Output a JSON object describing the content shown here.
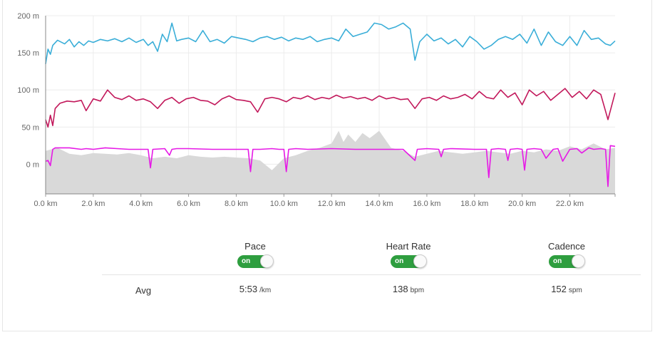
{
  "chart_data": {
    "type": "line",
    "x_ticks": [
      "0.0 km",
      "2.0 km",
      "4.0 km",
      "6.0 km",
      "8.0 km",
      "10.0 km",
      "12.0 km",
      "14.0 km",
      "16.0 km",
      "18.0 km",
      "20.0 km",
      "22.0 km"
    ],
    "y_ticks": [
      "200 m",
      "150 m",
      "100 m",
      "50 m",
      "0 m"
    ],
    "y_range": [
      -40,
      200
    ],
    "x_range": [
      0,
      23.9
    ],
    "grid": true,
    "series": [
      {
        "color": "#3aaed8",
        "x": [
          0,
          0.1,
          0.2,
          0.3,
          0.5,
          0.8,
          1.0,
          1.2,
          1.4,
          1.6,
          1.8,
          2.0,
          2.3,
          2.6,
          2.9,
          3.2,
          3.5,
          3.8,
          4.1,
          4.3,
          4.5,
          4.7,
          4.9,
          5.1,
          5.3,
          5.5,
          5.7,
          6.0,
          6.3,
          6.6,
          6.9,
          7.2,
          7.5,
          7.8,
          8.1,
          8.4,
          8.7,
          9.0,
          9.3,
          9.6,
          9.9,
          10.2,
          10.5,
          10.8,
          11.1,
          11.4,
          11.7,
          12.0,
          12.3,
          12.6,
          12.9,
          13.2,
          13.5,
          13.8,
          14.1,
          14.4,
          14.7,
          15.0,
          15.3,
          15.5,
          15.7,
          16.0,
          16.3,
          16.6,
          16.9,
          17.2,
          17.5,
          17.8,
          18.1,
          18.4,
          18.7,
          19.0,
          19.3,
          19.6,
          19.9,
          20.2,
          20.5,
          20.8,
          21.1,
          21.4,
          21.7,
          22.0,
          22.3,
          22.6,
          22.9,
          23.2,
          23.5,
          23.7,
          23.9
        ],
        "y": [
          135,
          155,
          148,
          160,
          167,
          162,
          168,
          158,
          165,
          160,
          166,
          164,
          168,
          166,
          169,
          165,
          170,
          164,
          168,
          160,
          165,
          152,
          175,
          165,
          190,
          166,
          168,
          170,
          165,
          180,
          165,
          168,
          163,
          172,
          170,
          168,
          165,
          170,
          172,
          168,
          171,
          166,
          170,
          168,
          172,
          165,
          168,
          170,
          166,
          182,
          172,
          175,
          178,
          190,
          188,
          182,
          185,
          190,
          182,
          140,
          165,
          175,
          166,
          170,
          162,
          168,
          158,
          172,
          165,
          155,
          160,
          168,
          172,
          168,
          175,
          163,
          182,
          160,
          178,
          165,
          160,
          172,
          160,
          180,
          168,
          170,
          162,
          160,
          166
        ]
      },
      {
        "color": "#c2185b",
        "x": [
          0,
          0.1,
          0.2,
          0.3,
          0.4,
          0.6,
          0.9,
          1.2,
          1.5,
          1.7,
          2.0,
          2.3,
          2.6,
          2.9,
          3.2,
          3.5,
          3.8,
          4.1,
          4.4,
          4.7,
          5.0,
          5.3,
          5.6,
          5.9,
          6.2,
          6.5,
          6.8,
          7.1,
          7.4,
          7.7,
          8.0,
          8.3,
          8.6,
          8.9,
          9.2,
          9.5,
          9.8,
          10.1,
          10.4,
          10.7,
          11.0,
          11.3,
          11.6,
          11.9,
          12.2,
          12.5,
          12.8,
          13.1,
          13.4,
          13.7,
          14.0,
          14.3,
          14.6,
          14.9,
          15.2,
          15.5,
          15.8,
          16.1,
          16.4,
          16.7,
          17.0,
          17.3,
          17.6,
          17.9,
          18.2,
          18.5,
          18.8,
          19.1,
          19.4,
          19.7,
          20.0,
          20.3,
          20.6,
          20.9,
          21.2,
          21.5,
          21.8,
          22.1,
          22.4,
          22.7,
          23.0,
          23.3,
          23.6,
          23.9
        ],
        "y": [
          60,
          50,
          66,
          52,
          75,
          82,
          85,
          84,
          86,
          72,
          88,
          85,
          100,
          90,
          87,
          92,
          86,
          88,
          84,
          75,
          86,
          90,
          82,
          88,
          90,
          86,
          85,
          80,
          88,
          92,
          87,
          86,
          84,
          70,
          88,
          90,
          88,
          84,
          90,
          88,
          92,
          87,
          90,
          88,
          93,
          89,
          91,
          88,
          90,
          86,
          92,
          88,
          90,
          87,
          88,
          75,
          88,
          90,
          86,
          92,
          88,
          90,
          94,
          88,
          98,
          90,
          88,
          100,
          90,
          96,
          80,
          100,
          92,
          98,
          86,
          94,
          102,
          90,
          98,
          88,
          100,
          94,
          60,
          96
        ]
      },
      {
        "color": "#e619e6",
        "x": [
          0,
          0.1,
          0.2,
          0.3,
          0.4,
          0.6,
          1.0,
          1.5,
          1.7,
          2.0,
          2.5,
          3.0,
          3.5,
          4.0,
          4.3,
          4.4,
          4.5,
          5.0,
          5.2,
          5.3,
          5.5,
          6.0,
          7.0,
          8.0,
          8.5,
          8.6,
          8.7,
          9.0,
          9.5,
          9.8,
          10.0,
          10.1,
          10.2,
          10.5,
          11.0,
          12.0,
          13.0,
          14.0,
          15.0,
          15.5,
          15.6,
          16.0,
          16.5,
          16.6,
          16.7,
          17.0,
          18.0,
          18.5,
          18.6,
          18.7,
          19.0,
          19.3,
          19.4,
          19.5,
          19.8,
          20.0,
          20.1,
          20.2,
          20.5,
          20.8,
          21.0,
          21.3,
          21.5,
          21.7,
          22.0,
          22.3,
          22.5,
          22.8,
          23.0,
          23.3,
          23.5,
          23.6,
          23.7,
          23.9
        ],
        "y": [
          4,
          5,
          -2,
          20,
          22,
          22,
          22,
          20,
          21,
          20,
          22,
          21,
          20,
          20,
          20,
          -5,
          20,
          21,
          12,
          20,
          21,
          21,
          20,
          20,
          20,
          -10,
          20,
          20,
          21,
          20,
          20,
          -10,
          20,
          21,
          20,
          21,
          20,
          20,
          20,
          5,
          20,
          21,
          20,
          10,
          20,
          21,
          20,
          20,
          -18,
          20,
          21,
          20,
          5,
          20,
          21,
          20,
          -8,
          20,
          21,
          20,
          8,
          20,
          21,
          4,
          20,
          21,
          15,
          22,
          20,
          21,
          20,
          -30,
          25,
          24
        ]
      }
    ],
    "elevation": {
      "color": "#d9d9d9",
      "x": [
        0,
        0.5,
        1.0,
        1.5,
        2.0,
        2.5,
        3.0,
        3.5,
        4.0,
        4.5,
        5.0,
        5.5,
        6.0,
        6.5,
        7.0,
        7.5,
        8.0,
        8.5,
        9.0,
        9.5,
        10.0,
        10.5,
        11.0,
        11.5,
        12.0,
        12.3,
        12.5,
        12.7,
        13.0,
        13.3,
        13.6,
        14.0,
        14.5,
        15.0,
        15.5,
        16.0,
        16.5,
        17.0,
        17.5,
        18.0,
        18.5,
        19.0,
        19.5,
        20.0,
        20.5,
        21.0,
        21.5,
        22.0,
        22.5,
        23.0,
        23.5,
        23.9
      ],
      "y": [
        18,
        22,
        14,
        12,
        15,
        14,
        13,
        15,
        12,
        8,
        10,
        8,
        12,
        10,
        9,
        10,
        9,
        8,
        5,
        -8,
        8,
        12,
        18,
        22,
        28,
        45,
        30,
        40,
        30,
        42,
        35,
        45,
        22,
        18,
        10,
        14,
        18,
        16,
        14,
        16,
        18,
        16,
        14,
        18,
        16,
        20,
        18,
        24,
        20,
        28,
        20,
        22
      ]
    }
  },
  "metrics": [
    {
      "label": "Pace",
      "toggle": "on",
      "value": "5:53",
      "unit": "/km"
    },
    {
      "label": "Heart Rate",
      "toggle": "on",
      "value": "138",
      "unit": "bpm"
    },
    {
      "label": "Cadence",
      "toggle": "on",
      "value": "152",
      "unit": "spm"
    }
  ],
  "avg_label": "Avg"
}
